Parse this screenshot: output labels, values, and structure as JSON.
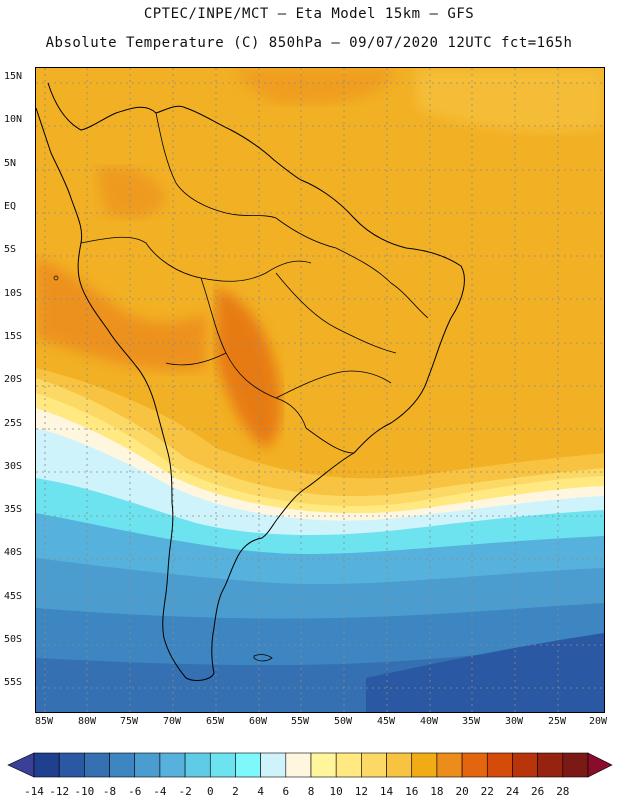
{
  "header": {
    "line1": "CPTEC/INPE/MCT —  Eta Model 15km — GFS",
    "line2": "Absolute Temperature (C) 850hPa — 09/07/2020 12UTC fct=165h"
  },
  "map": {
    "lat_labels": [
      "15N",
      "10N",
      "5N",
      "EQ",
      "5S",
      "10S",
      "15S",
      "20S",
      "25S",
      "30S",
      "35S",
      "40S",
      "45S",
      "50S",
      "55S"
    ],
    "lon_labels": [
      "85W",
      "80W",
      "75W",
      "70W",
      "65W",
      "60W",
      "55W",
      "50W",
      "45W",
      "40W",
      "35W",
      "30W",
      "25W",
      "20W"
    ]
  },
  "colorbar": {
    "ticks": [
      "-14",
      "-12",
      "-10",
      "-8",
      "-6",
      "-4",
      "-2",
      "0",
      "2",
      "4",
      "6",
      "8",
      "10",
      "12",
      "14",
      "16",
      "18",
      "20",
      "22",
      "24",
      "26",
      "28"
    ],
    "colors": [
      "#1f3f8f",
      "#2a58a3",
      "#3570b3",
      "#3e86c1",
      "#4b9dcf",
      "#56b2dc",
      "#5fcbe6",
      "#6de3f0",
      "#7ff8fb",
      "#cff3fb",
      "#fff6e0",
      "#fff59a",
      "#ffe980",
      "#fcd865",
      "#f7c341",
      "#f1ab14",
      "#ec8c1a",
      "#e3660e",
      "#d54c0a",
      "#b8340a",
      "#962310",
      "#7a1915"
    ],
    "low_arrow_color": "#3a3f97",
    "high_arrow_color": "#8a0c2c"
  }
}
